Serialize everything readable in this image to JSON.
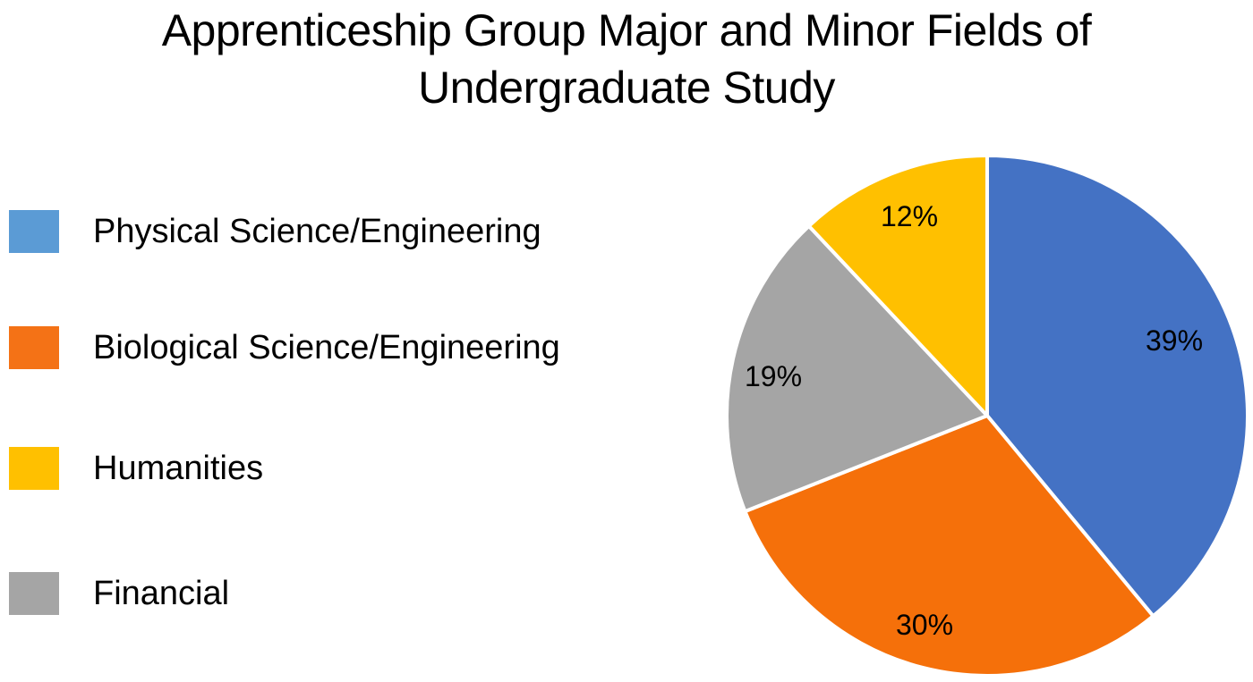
{
  "chart_data": {
    "type": "pie",
    "title": "Apprenticeship Group Major and Minor Fields of Undergraduate Study",
    "title_lines": [
      "Apprenticeship Group Major and Minor Fields of",
      "Undergraduate Study"
    ],
    "legend_position": "left",
    "legend": [
      {
        "label": "Physical Science/Engineering",
        "color": "#5B9BD5"
      },
      {
        "label": "Biological Science/Engineering",
        "color": "#F47216"
      },
      {
        "label": "Humanities",
        "color": "#FFC000"
      },
      {
        "label": "Financial",
        "color": "#A5A5A5"
      }
    ],
    "slices": [
      {
        "label": "Physical Science/Engineering",
        "value": 39,
        "display": "39%",
        "color": "#4472C4"
      },
      {
        "label": "Biological Science/Engineering",
        "value": 30,
        "display": "30%",
        "color": "#F5700A"
      },
      {
        "label": "Financial",
        "value": 19,
        "display": "19%",
        "color": "#A5A5A5"
      },
      {
        "label": "Humanities",
        "value": 12,
        "display": "12%",
        "color": "#FFC000"
      }
    ],
    "categories": [
      "Physical Science/Engineering",
      "Biological Science/Engineering",
      "Financial",
      "Humanities"
    ],
    "values": [
      39,
      30,
      19,
      12
    ],
    "units": "%",
    "start_angle": "12 o'clock, clockwise"
  }
}
